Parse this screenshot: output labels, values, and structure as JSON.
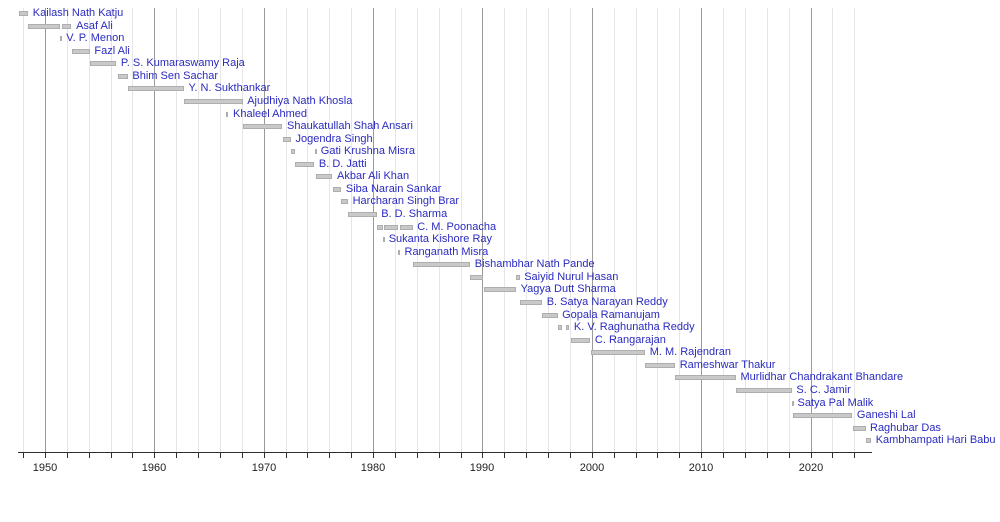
{
  "chart_data": {
    "type": "bar",
    "subtype": "horizontal-timeline-gantt",
    "title": "",
    "xlabel": "",
    "ylabel": "",
    "legend": "none",
    "grid": "vertical, minor every 2 years, major every decade",
    "x_axis": {
      "range": [
        1947.55,
        2025.6
      ],
      "ticks": [
        1950,
        1960,
        1970,
        1980,
        1990,
        2000,
        2010,
        2020
      ],
      "tick_labels": [
        "1950",
        "1960",
        "1970",
        "1980",
        "1990",
        "2000",
        "2010",
        "2020"
      ],
      "minor_gridline_step_years": 2,
      "minor_gridline_years_start": 1948,
      "minor_gridline_years_end": 2024
    },
    "rows": [
      {
        "name": "Kailash Nath Katju",
        "segments": [
          [
            1947.62,
            1948.47
          ]
        ]
      },
      {
        "name": "Asaf Ali",
        "segments": [
          [
            1948.47,
            1951.34
          ],
          [
            1951.54,
            1952.43
          ]
        ]
      },
      {
        "name": "V. P. Menon",
        "segments": [
          [
            1951.34,
            1951.54
          ]
        ]
      },
      {
        "name": "Fazl Ali",
        "segments": [
          [
            1952.43,
            1954.11
          ]
        ]
      },
      {
        "name": "P. S. Kumaraswamy Raja",
        "segments": [
          [
            1954.11,
            1956.53
          ]
        ]
      },
      {
        "name": "Bhim Sen Sachar",
        "segments": [
          [
            1956.7,
            1957.58
          ]
        ]
      },
      {
        "name": "Y. N. Sukthankar",
        "segments": [
          [
            1957.58,
            1962.71
          ]
        ]
      },
      {
        "name": "Ajudhiya Nath Khosla",
        "segments": [
          [
            1962.71,
            1968.08
          ]
        ]
      },
      {
        "name": "Khaleel Ahmed",
        "segments": [
          [
            1966.59,
            1966.78
          ]
        ]
      },
      {
        "name": "Shaukatullah Shah Ansari",
        "segments": [
          [
            1968.08,
            1971.72
          ]
        ]
      },
      {
        "name": "Jogendra Singh",
        "segments": [
          [
            1971.72,
            1972.49
          ]
        ]
      },
      {
        "name": "Gati Krushna Misra",
        "segments": [
          [
            1972.5,
            1972.85
          ],
          [
            1974.64,
            1974.81
          ]
        ]
      },
      {
        "name": "B. D. Jatti",
        "segments": [
          [
            1972.85,
            1974.63
          ]
        ]
      },
      {
        "name": "Akbar Ali Khan",
        "segments": [
          [
            1974.81,
            1976.29
          ]
        ]
      },
      {
        "name": "Siba Narain Sankar",
        "segments": [
          [
            1976.29,
            1977.1
          ]
        ]
      },
      {
        "name": "Harcharan Singh Brar",
        "segments": [
          [
            1977.1,
            1977.72
          ]
        ]
      },
      {
        "name": "B. D. Sharma",
        "segments": [
          [
            1977.72,
            1980.33
          ]
        ]
      },
      {
        "name": "C. M. Poonacha",
        "segments": [
          [
            1980.33,
            1980.9
          ],
          [
            1981.02,
            1982.3
          ],
          [
            1982.46,
            1983.62
          ]
        ]
      },
      {
        "name": "Sukanta Kishore Ray",
        "segments": [
          [
            1980.9,
            1981.02
          ]
        ]
      },
      {
        "name": "Ranganath Misra",
        "segments": [
          [
            1982.3,
            1982.46
          ]
        ]
      },
      {
        "name": "Bishambhar Nath Pande",
        "segments": [
          [
            1983.62,
            1988.89
          ]
        ]
      },
      {
        "name": "Saiyid Nurul Hasan",
        "segments": [
          [
            1988.89,
            1990.1
          ],
          [
            1993.09,
            1993.41
          ]
        ]
      },
      {
        "name": "Yagya Dutt Sharma",
        "segments": [
          [
            1990.1,
            1993.08
          ]
        ]
      },
      {
        "name": "B. Satya Narayan Reddy",
        "segments": [
          [
            1993.41,
            1995.46
          ]
        ]
      },
      {
        "name": "Gopala Ramanujam",
        "segments": [
          [
            1995.46,
            1996.87
          ]
        ]
      },
      {
        "name": "K. V. Raghunatha Reddy",
        "segments": [
          [
            1996.95,
            1997.28
          ],
          [
            1997.62,
            1997.95
          ]
        ]
      },
      {
        "name": "C. Rangarajan",
        "segments": [
          [
            1998.1,
            1999.87
          ]
        ]
      },
      {
        "name": "M. M. Rajendran",
        "segments": [
          [
            1999.88,
            2004.88
          ]
        ]
      },
      {
        "name": "Rameshwar Thakur",
        "segments": [
          [
            2004.89,
            2007.63
          ]
        ]
      },
      {
        "name": "Murlidhar Chandrakant Bhandare",
        "segments": [
          [
            2007.64,
            2013.19
          ]
        ]
      },
      {
        "name": "S. C. Jamir",
        "segments": [
          [
            2013.22,
            2018.3
          ]
        ]
      },
      {
        "name": "Satya Pal Malik",
        "segments": [
          [
            2018.31,
            2018.4
          ]
        ]
      },
      {
        "name": "Ganeshi Lal",
        "segments": [
          [
            2018.41,
            2023.83
          ]
        ]
      },
      {
        "name": "Raghubar Das",
        "segments": [
          [
            2023.84,
            2025.03
          ]
        ]
      },
      {
        "name": "Kambhampati Hari Babu",
        "segments": [
          [
            2025.04,
            2025.55
          ]
        ]
      }
    ]
  },
  "colors": {
    "background": "#ffffff",
    "bar_fill": "#c9c9c9",
    "bar_border": "#aeaeae",
    "label_link_blue": "#2b2bc0",
    "grid_minor": "#e6e6e6",
    "grid_major": "#9a9a9a",
    "axis_line": "#2e2e2e",
    "tick_label": "#222222"
  }
}
